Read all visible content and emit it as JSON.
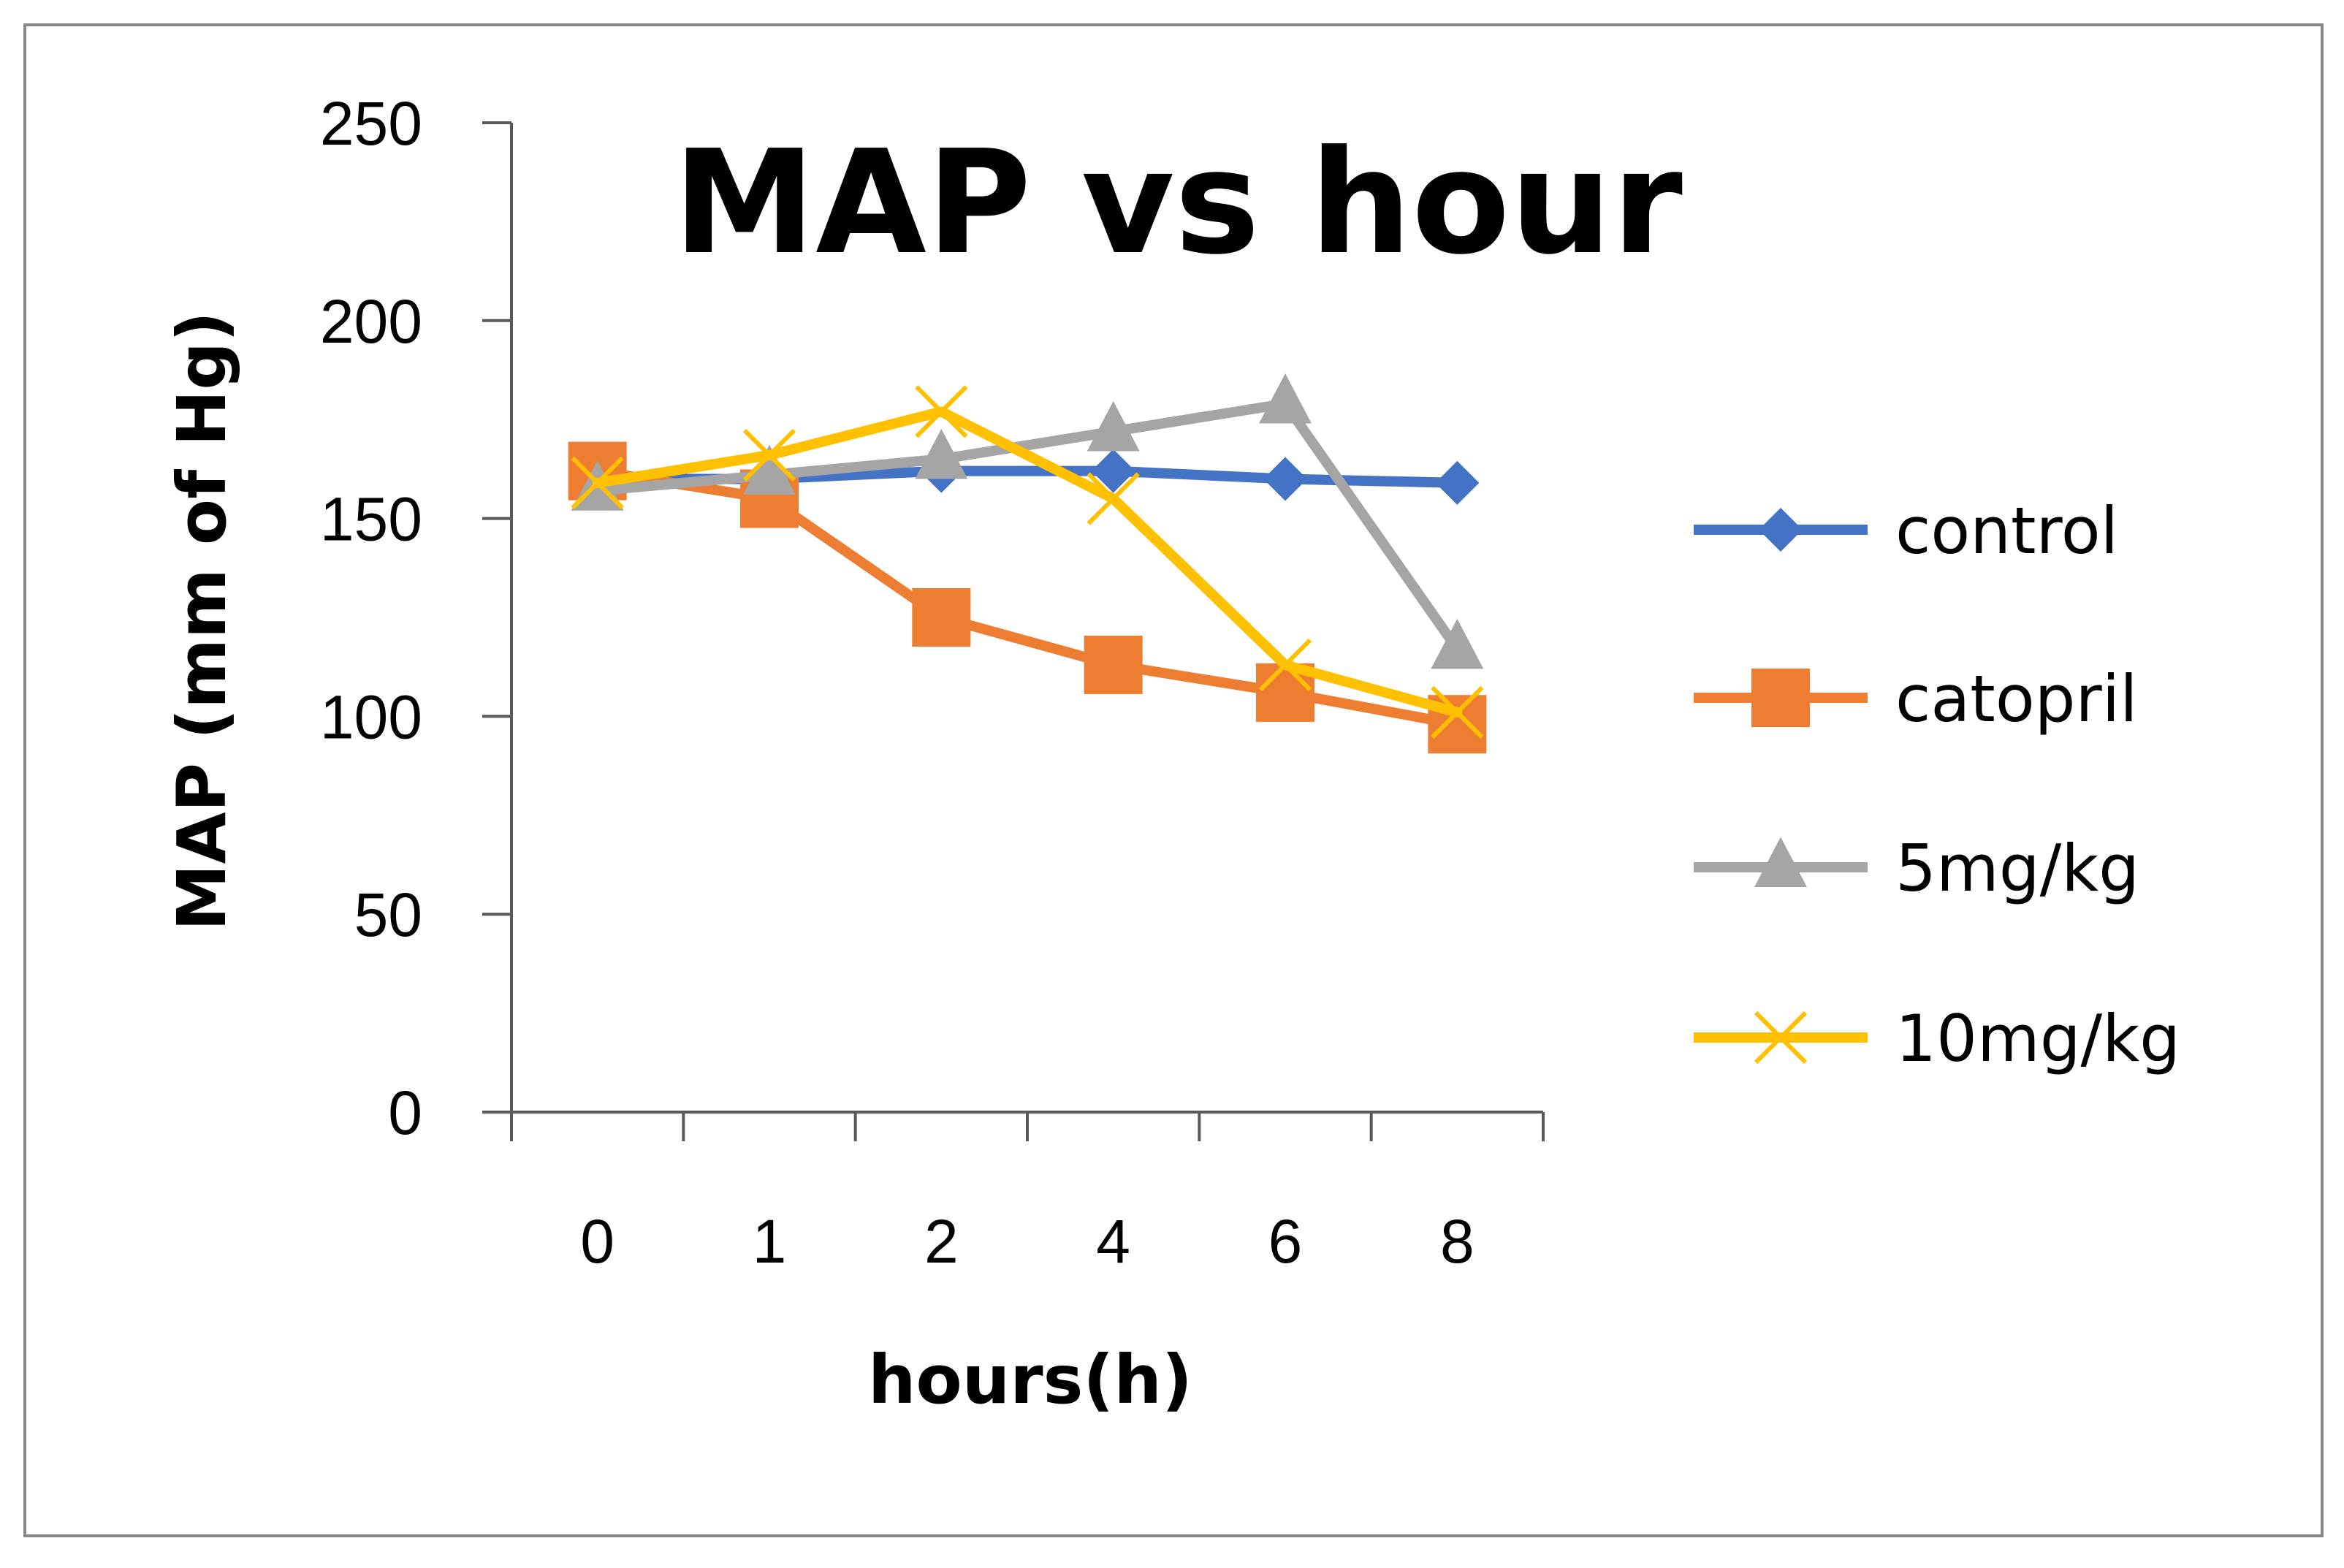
{
  "chart_data": {
    "type": "line",
    "title": "MAP vs hour",
    "xlabel": "hours(h)",
    "ylabel": "MAP (mm of Hg)",
    "categories": [
      "0",
      "1",
      "2",
      "4",
      "6",
      "8"
    ],
    "ylim": [
      0,
      250
    ],
    "yticks": [
      "0",
      "50",
      "100",
      "150",
      "200",
      "250"
    ],
    "grid": false,
    "legend_position": "right",
    "series": [
      {
        "name": "control",
        "values": [
          160,
          160,
          162,
          162,
          160,
          159
        ],
        "color": "#4472C4",
        "marker": "diamond"
      },
      {
        "name": "catopril",
        "values": [
          162,
          155,
          125,
          113,
          106,
          98
        ],
        "color": "#ED7D31",
        "marker": "square"
      },
      {
        "name": "5mg/kg",
        "values": [
          157,
          161,
          165,
          172,
          179,
          117
        ],
        "color": "#A5A5A5",
        "marker": "triangle"
      },
      {
        "name": "10mg/kg",
        "values": [
          159,
          166,
          177,
          155,
          113,
          101
        ],
        "color": "#FFC000",
        "marker": "x"
      }
    ]
  }
}
